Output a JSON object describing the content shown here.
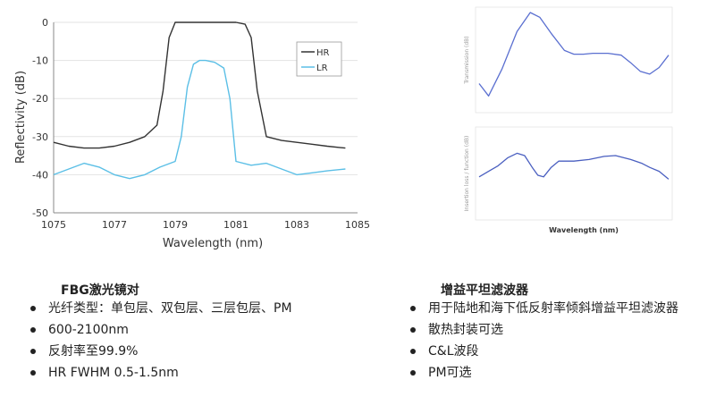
{
  "left_section": {
    "title": "FBG激光镜对",
    "bullets": [
      "光纤类型：单包层、双包层、三层包层、PM",
      "600-2100nm",
      "反射率至99.9%",
      "HR FWHM 0.5-1.5nm"
    ]
  },
  "right_section": {
    "title": "增益平坦滤波器",
    "bullets": [
      "用于陆地和海下低反射率倾斜增益平坦滤波器",
      "散热封装可选",
      "C&L波段",
      "PM可选"
    ]
  },
  "chart_data": [
    {
      "type": "line",
      "xlabel": "Wavelength (nm)",
      "ylabel": "Reflectivity (dB)",
      "xlim": [
        1075,
        1085
      ],
      "ylim": [
        -50,
        0
      ],
      "xticks": [
        "1075",
        "1077",
        "1079",
        "1081",
        "1083",
        "1085"
      ],
      "yticks": [
        "0",
        "-10",
        "-20",
        "-30",
        "-40",
        "-50"
      ],
      "grid": true,
      "legend_position": "top-right",
      "series": [
        {
          "name": "HR",
          "color": "#333333",
          "x": [
            1075,
            1075.5,
            1076,
            1076.5,
            1077,
            1077.5,
            1078,
            1078.4,
            1078.6,
            1078.8,
            1079,
            1079.5,
            1080,
            1080.5,
            1081,
            1081.3,
            1081.5,
            1081.7,
            1082,
            1082.5,
            1083,
            1083.5,
            1084,
            1084.6
          ],
          "y": [
            -31.5,
            -32.5,
            -33,
            -33,
            -32.5,
            -31.5,
            -30,
            -27,
            -18,
            -4,
            0,
            0,
            0,
            0,
            0,
            -0.5,
            -4,
            -18,
            -30,
            -31,
            -31.5,
            -32,
            -32.5,
            -33
          ]
        },
        {
          "name": "LR",
          "color": "#5bbfe6",
          "x": [
            1075,
            1075.5,
            1076,
            1076.5,
            1077,
            1077.5,
            1078,
            1078.5,
            1079,
            1079.2,
            1079.4,
            1079.6,
            1079.8,
            1080,
            1080.3,
            1080.6,
            1080.8,
            1081,
            1081.5,
            1082,
            1082.5,
            1083,
            1083.5,
            1084,
            1084.6
          ],
          "y": [
            -40,
            -38.5,
            -37,
            -38,
            -40,
            -41,
            -40,
            -38,
            -36.5,
            -30,
            -17,
            -11,
            -10,
            -10,
            -10.5,
            -12,
            -20,
            -36.5,
            -37.5,
            -37,
            -38.5,
            -40,
            -39.5,
            -39,
            -38.5
          ]
        }
      ]
    },
    {
      "type": "line",
      "ylabel": "Transmission (dB)",
      "grid": false,
      "series": [
        {
          "color": "#5a6fd0",
          "x": [
            0,
            0.05,
            0.12,
            0.2,
            0.27,
            0.32,
            0.38,
            0.45,
            0.5,
            0.55,
            0.6,
            0.68,
            0.75,
            0.8,
            0.85,
            0.9,
            0.95,
            1.0
          ],
          "y": [
            0.25,
            0.12,
            0.4,
            0.8,
            1.0,
            0.95,
            0.78,
            0.6,
            0.56,
            0.56,
            0.57,
            0.57,
            0.55,
            0.47,
            0.38,
            0.35,
            0.42,
            0.55
          ]
        }
      ]
    },
    {
      "type": "line",
      "xlabel": "Wavelength (nm)",
      "ylabel": "Insertion loss / function (dB)",
      "grid": false,
      "series": [
        {
          "color": "#4a5fc0",
          "x": [
            0,
            0.05,
            0.1,
            0.15,
            0.2,
            0.24,
            0.28,
            0.31,
            0.34,
            0.38,
            0.42,
            0.5,
            0.58,
            0.66,
            0.72,
            0.8,
            0.86,
            0.9,
            0.95,
            1.0
          ],
          "y": [
            0.48,
            0.55,
            0.62,
            0.72,
            0.78,
            0.75,
            0.6,
            0.5,
            0.48,
            0.6,
            0.68,
            0.68,
            0.7,
            0.74,
            0.75,
            0.7,
            0.65,
            0.6,
            0.55,
            0.45
          ]
        }
      ]
    }
  ]
}
